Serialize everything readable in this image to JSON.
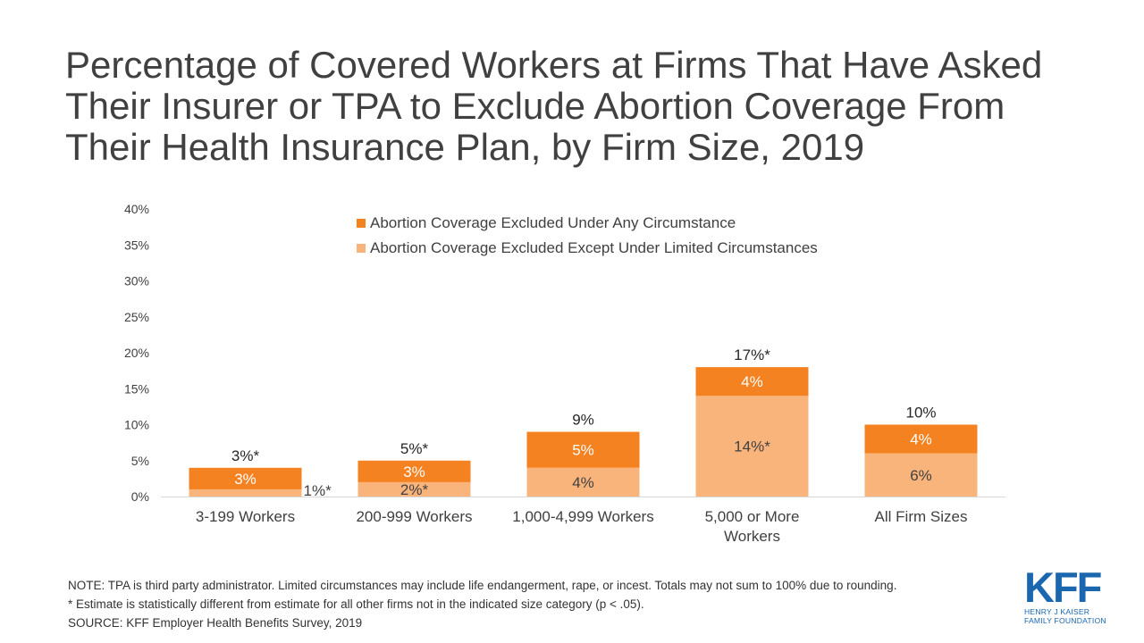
{
  "title_lines": [
    "Percentage of Covered Workers at Firms That Have Asked",
    "Their Insurer or TPA to Exclude Abortion Coverage From",
    "Their Health Insurance Plan, by Firm Size, 2019"
  ],
  "chart_data": {
    "type": "bar",
    "stacked": true,
    "categories": [
      [
        "3-199 Workers"
      ],
      [
        "200-999 Workers"
      ],
      [
        "1,000-4,999 Workers"
      ],
      [
        "5,000 or More",
        "Workers"
      ],
      [
        "All Firm Sizes"
      ]
    ],
    "series": [
      {
        "name": "Abortion Coverage Excluded Except Under Limited Circumstances",
        "color": "#f9b47c",
        "values": [
          1,
          2,
          4,
          14,
          6
        ],
        "labels": [
          "1%*",
          "2%*",
          "4%",
          "14%*",
          "6%"
        ]
      },
      {
        "name": "Abortion Coverage Excluded Under Any Circumstance",
        "color": "#f58221",
        "values": [
          3,
          3,
          5,
          4,
          4
        ],
        "labels": [
          "3%",
          "3%",
          "5%",
          "4%",
          "4%"
        ]
      }
    ],
    "totals": [
      4,
      5,
      9,
      18,
      10
    ],
    "total_labels": [
      "3%*",
      "5%*",
      "9%",
      "17%*",
      "10%"
    ],
    "ylim": [
      0,
      40
    ],
    "yticks": [
      0,
      5,
      10,
      15,
      20,
      25,
      30,
      35,
      40
    ],
    "ytick_labels": [
      "0%",
      "5%",
      "10%",
      "15%",
      "20%",
      "25%",
      "30%",
      "35%",
      "40%"
    ],
    "legend_order": [
      1,
      0
    ],
    "legend_position": "top-center",
    "grid": false
  },
  "notes": [
    "NOTE: TPA is third party administrator. Limited circumstances may include life endangerment, rape, or incest. Totals may not sum to 100% due to rounding.",
    "* Estimate is statistically different from estimate for all other firms not in the indicated size category (p < .05).",
    "SOURCE: KFF Employer Health Benefits Survey, 2019"
  ],
  "logo": {
    "mark": "KFF",
    "line1": "HENRY J KAISER",
    "line2": "FAMILY FOUNDATION"
  }
}
